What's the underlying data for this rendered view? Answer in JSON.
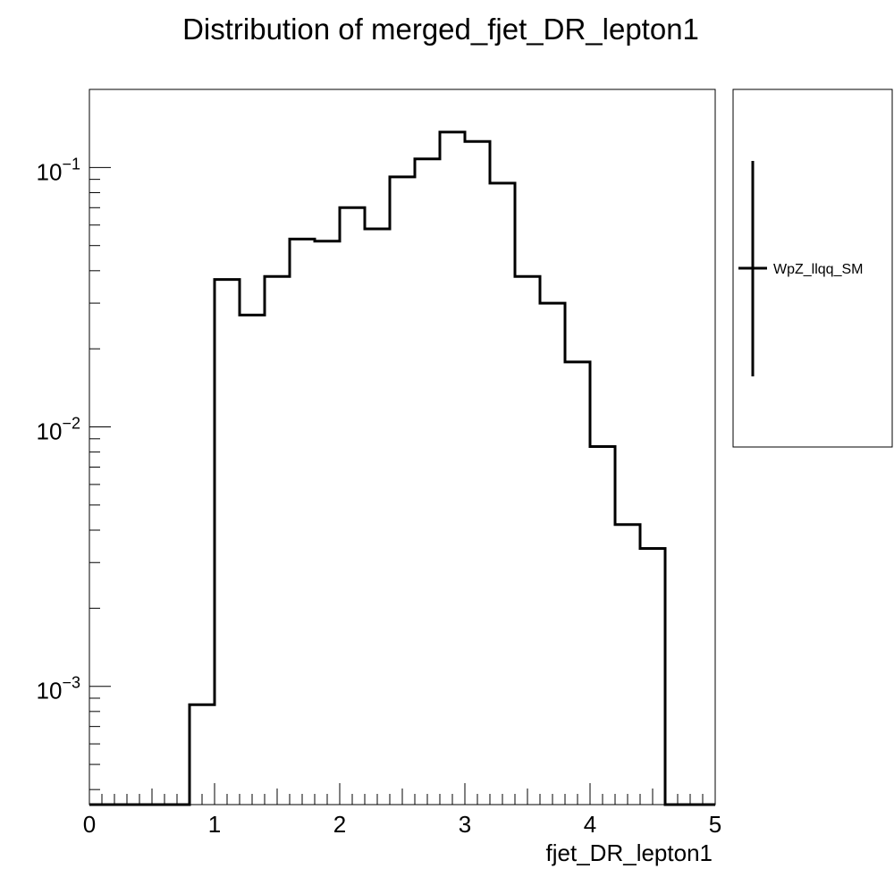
{
  "chart_data": {
    "type": "histogram",
    "title": "Distribution of merged_fjet_DR_lepton1",
    "xlabel": "fjet_DR_lepton1",
    "ylabel": "",
    "xlim": [
      0,
      5
    ],
    "ylim": [
      0.00035,
      0.2
    ],
    "yscale": "log",
    "grid": false,
    "legend": {
      "placement": "outside-right",
      "entries": [
        "WpZ_llqq_SM"
      ]
    },
    "x_ticks": [
      "0",
      "1",
      "2",
      "3",
      "4",
      "5"
    ],
    "y_ticks": [
      {
        "value": 0.001,
        "base": "10",
        "exp": "−3"
      },
      {
        "value": 0.01,
        "base": "10",
        "exp": "−2"
      },
      {
        "value": 0.1,
        "base": "10",
        "exp": "−1"
      }
    ],
    "bin_edges": [
      0.0,
      0.2,
      0.4,
      0.6,
      0.8,
      1.0,
      1.2,
      1.4,
      1.6,
      1.8,
      2.0,
      2.2,
      2.4,
      2.6,
      2.8,
      3.0,
      3.2,
      3.4,
      3.6,
      3.8,
      4.0,
      4.2,
      4.4,
      4.6,
      4.8,
      5.0
    ],
    "series": [
      {
        "name": "WpZ_llqq_SM",
        "values": [
          0,
          0,
          0,
          0,
          0.00085,
          0.037,
          0.027,
          0.038,
          0.053,
          0.052,
          0.07,
          0.058,
          0.092,
          0.108,
          0.137,
          0.126,
          0.087,
          0.038,
          0.03,
          0.0178,
          0.0084,
          0.0042,
          0.0034,
          0,
          0
        ]
      }
    ]
  }
}
